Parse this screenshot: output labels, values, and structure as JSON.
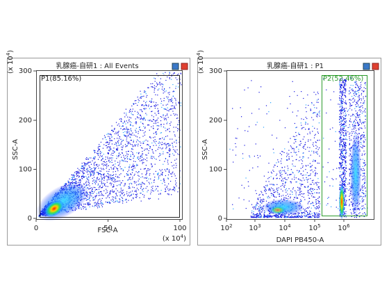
{
  "panels": [
    {
      "title": "乳腺癌-自研1 : All Events",
      "gate_label": "P1(85.16%)",
      "x_axis_label": "FSC-A",
      "y_axis_label": "SSC-A",
      "x_ticks": [
        "0",
        "50",
        "100"
      ],
      "y_ticks": [
        "0",
        "100",
        "200",
        "300"
      ],
      "x_multiplier": {
        "prefix": "(x 10",
        "exp": "4",
        "suffix": ")"
      },
      "y_multiplier": {
        "prefix": "(x 10",
        "exp": "4",
        "suffix": ")"
      }
    },
    {
      "title": "乳腺癌-自研1 : P1",
      "gate_label": "P2(52.46%)",
      "x_axis_label": "DAPI PB450-A",
      "y_axis_label": "SSC-A",
      "x_ticks": [
        {
          "base": "10",
          "exp": "2"
        },
        {
          "base": "10",
          "exp": "3"
        },
        {
          "base": "10",
          "exp": "4"
        },
        {
          "base": "10",
          "exp": "5"
        },
        {
          "base": "10",
          "exp": "6"
        }
      ],
      "y_ticks": [
        "0",
        "100",
        "200",
        "300"
      ],
      "y_multiplier": {
        "prefix": "(x 10",
        "exp": "4",
        "suffix": ")"
      }
    }
  ]
}
